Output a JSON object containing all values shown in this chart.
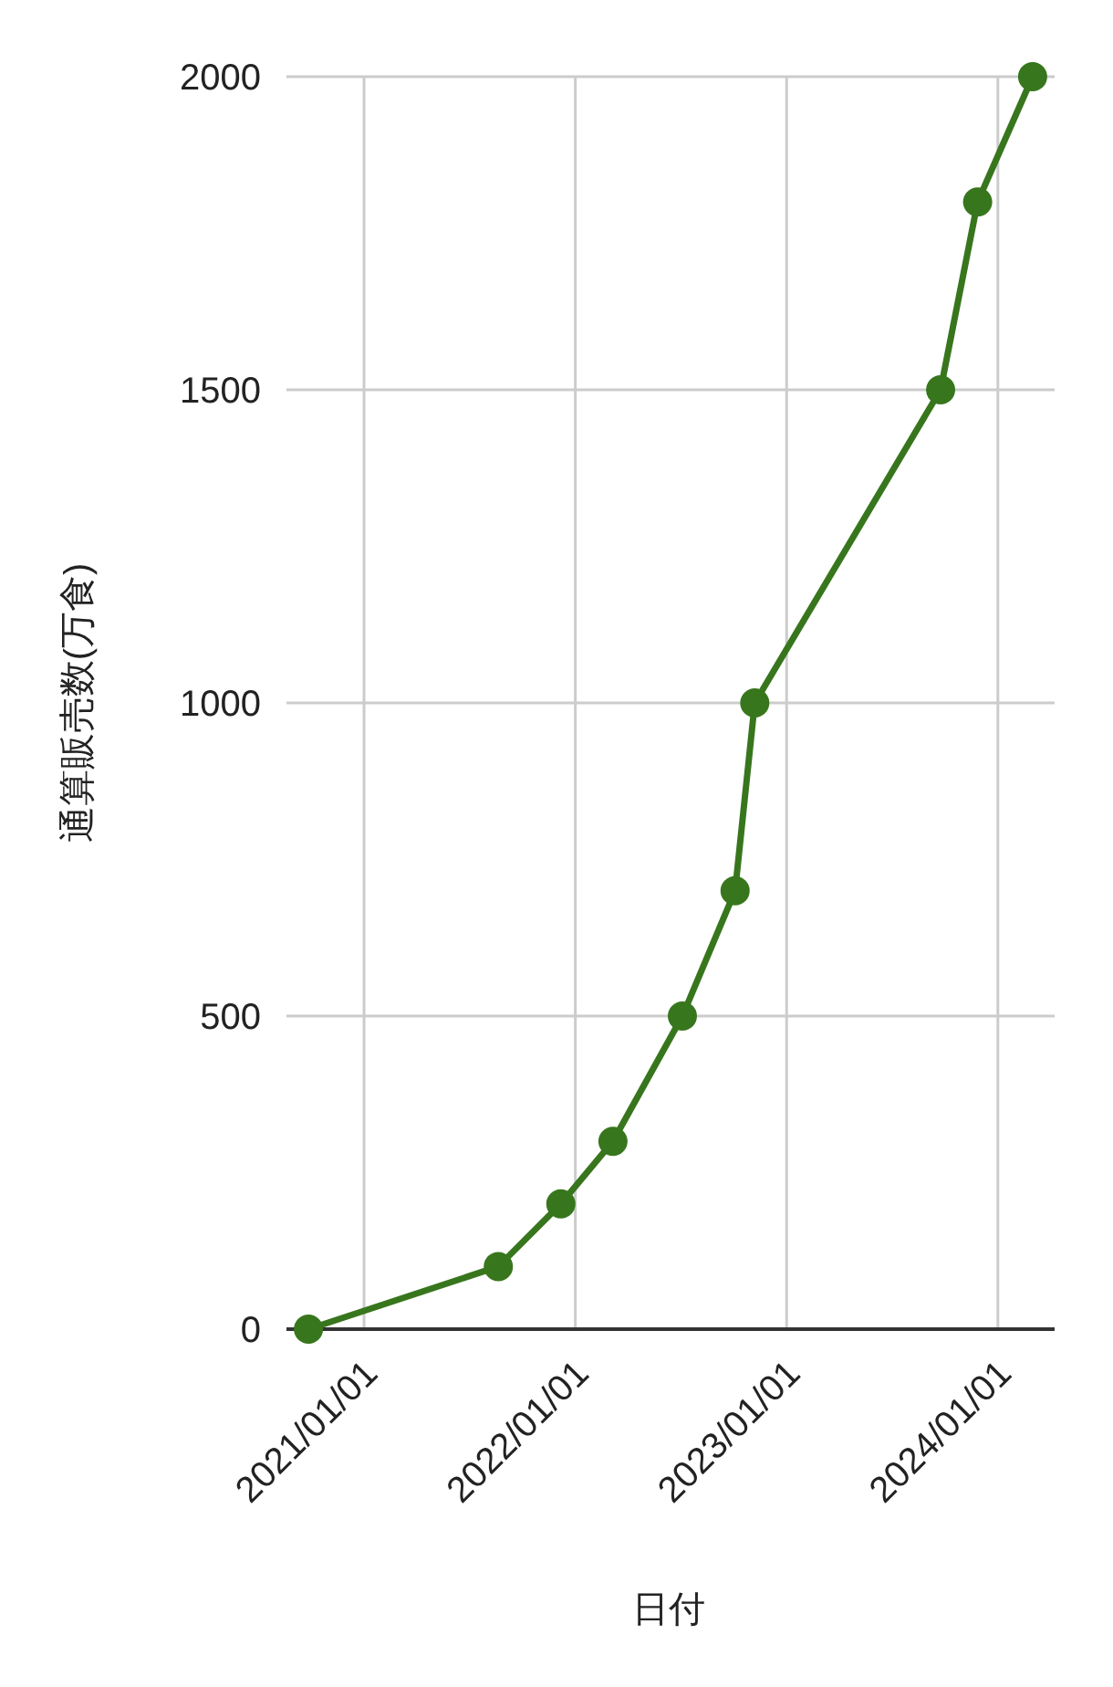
{
  "chart_data": {
    "type": "line",
    "xlabel": "日付",
    "ylabel": "通算販売数(万食)",
    "x": [
      "2020-09-27",
      "2021-08-21",
      "2021-12-07",
      "2022-03-07",
      "2022-07-05",
      "2022-10-04",
      "2022-11-07",
      "2023-09-24",
      "2023-11-27",
      "2024-03-01"
    ],
    "series": [
      {
        "color": "#38761d",
        "values": [
          0,
          100,
          200,
          300,
          500,
          700,
          1000,
          1500,
          1800,
          2000
        ]
      }
    ],
    "xlim": [
      "2020-08-20",
      "2024-04-08"
    ],
    "xticks": [
      {
        "value": "2021-01-01",
        "label": "2021/01/01"
      },
      {
        "value": "2022-01-01",
        "label": "2022/01/01"
      },
      {
        "value": "2023-01-01",
        "label": "2023/01/01"
      },
      {
        "value": "2024-01-01",
        "label": "2024/01/01"
      }
    ],
    "ylim": [
      0,
      2000
    ],
    "yticks": [
      0,
      500,
      1000,
      1500,
      2000
    ],
    "grid": true,
    "marker": "circle",
    "line_style": "solid"
  }
}
